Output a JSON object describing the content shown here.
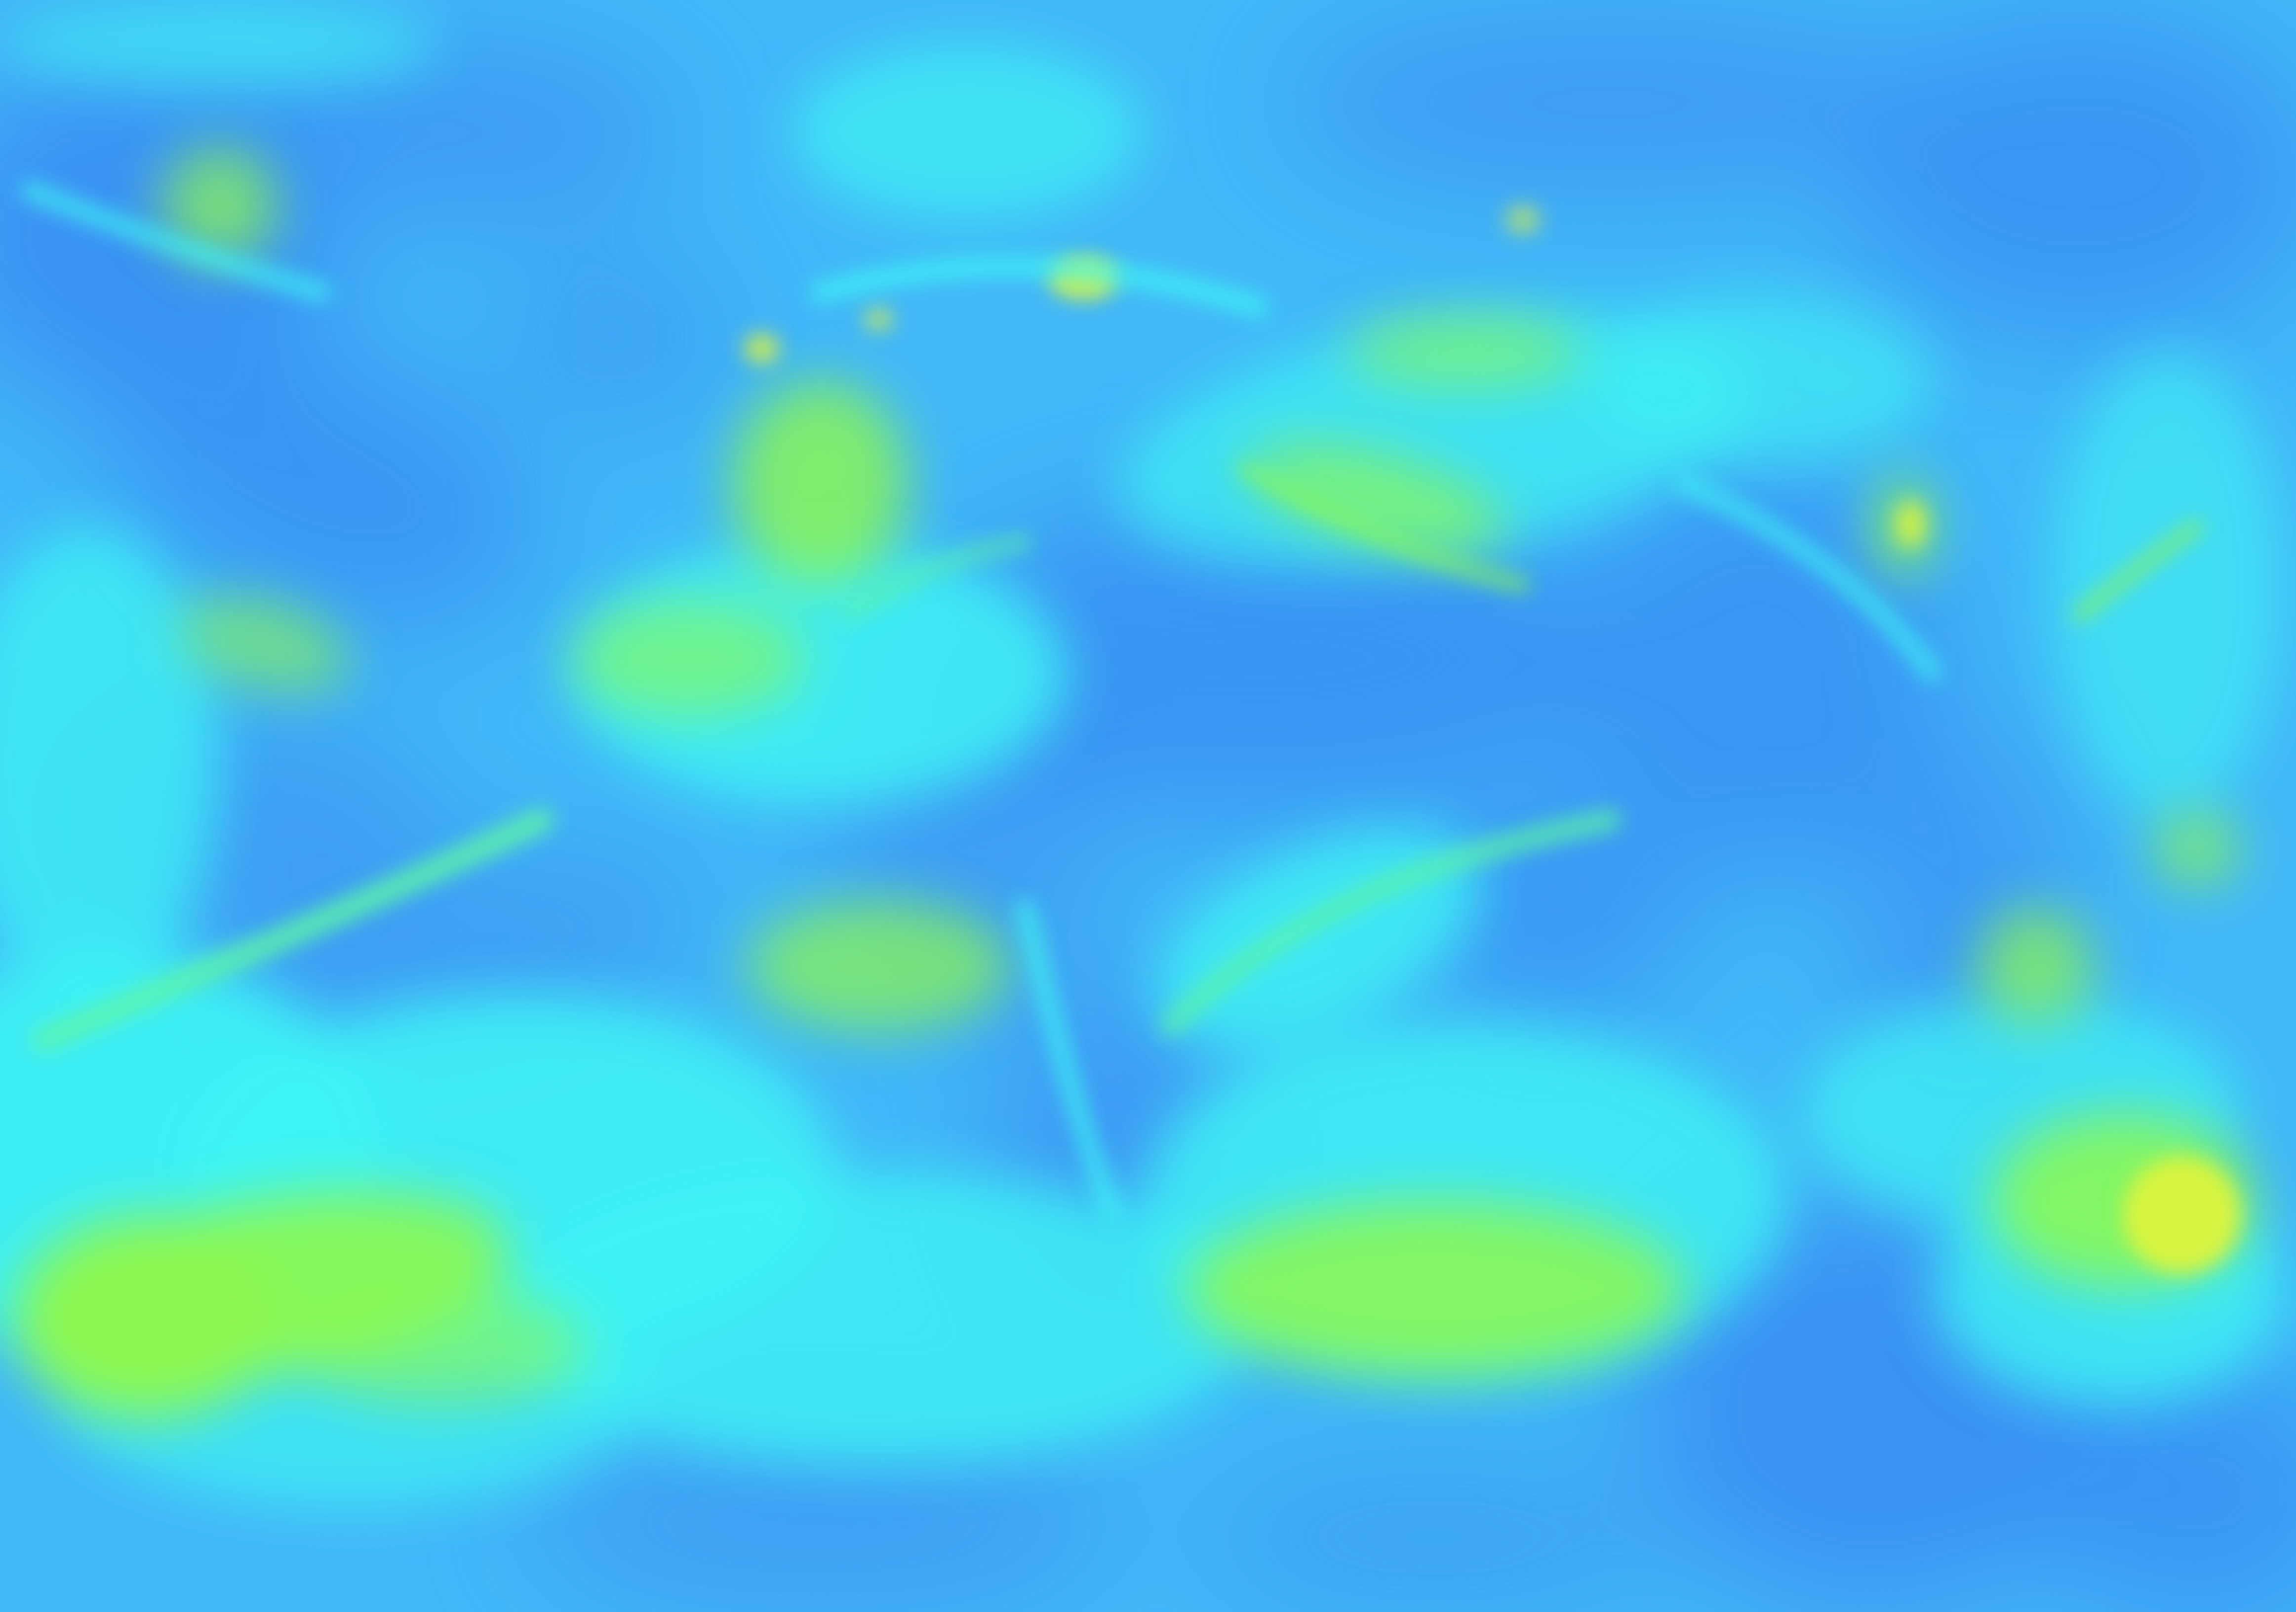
{
  "image": {
    "kind": "false-color heatmap field",
    "palette": {
      "low": "#3a8ff2",
      "low_mid": "#42b8f8",
      "mid": "#3ff4f4",
      "mid_high": "#5cf4a8",
      "high": "#8ef84c",
      "peak": "#e2f43a"
    }
  }
}
